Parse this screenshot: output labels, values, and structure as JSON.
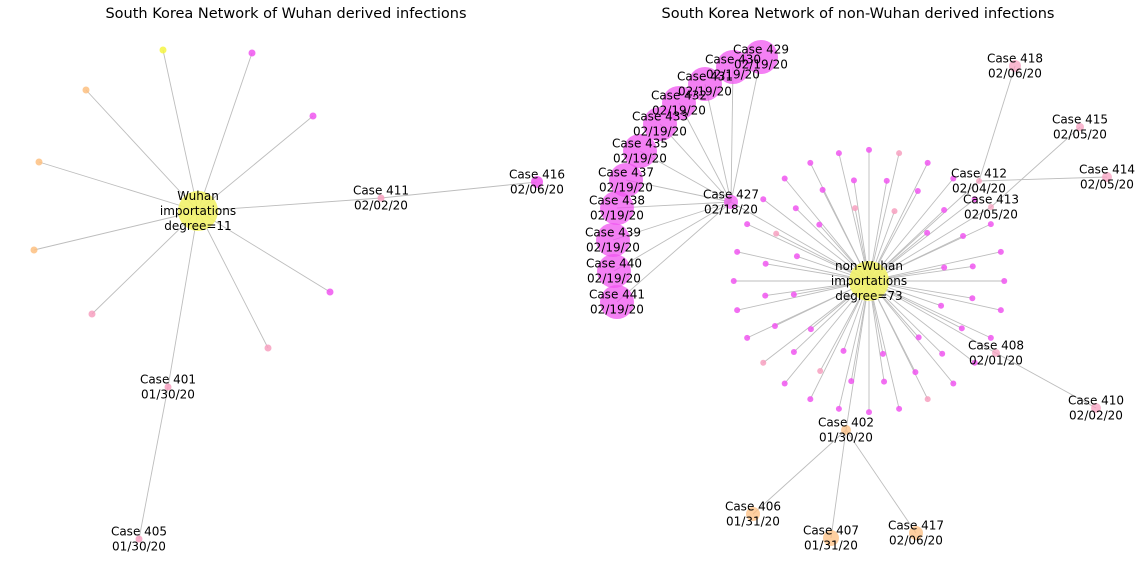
{
  "panels": [
    {
      "title": "South Korea Network of Wuhan derived infections",
      "hub_label": [
        "Wuhan",
        "importations",
        "degree=11"
      ],
      "nodes": [
        {
          "id": "yellow-top",
          "color": "#f5f542",
          "hub_edge": true
        },
        {
          "id": "magenta-1",
          "color": "#f056f0",
          "hub_edge": true
        },
        {
          "id": "magenta-2",
          "color": "#f056f0",
          "hub_edge": true
        },
        {
          "id": "orange-1",
          "color": "#fdbf80",
          "hub_edge": true
        },
        {
          "id": "orange-2",
          "color": "#fdbf80",
          "hub_edge": true
        },
        {
          "id": "orange-3",
          "color": "#fdbf80",
          "hub_edge": true
        },
        {
          "id": "pink-1",
          "color": "#f7a0c0",
          "hub_edge": true
        },
        {
          "id": "pink-2",
          "color": "#f7a0c0",
          "hub_edge": true
        },
        {
          "id": "magenta-3",
          "color": "#f056f0",
          "hub_edge": true
        },
        {
          "id": "case411",
          "label": "Case 411",
          "date": "02/02/20",
          "color": "#f7a0c0",
          "hub_edge": true
        },
        {
          "id": "case416",
          "label": "Case 416",
          "date": "02/06/20",
          "color": "#f056f0"
        },
        {
          "id": "case401",
          "label": "Case 401",
          "date": "01/30/20",
          "color": "#f7a0c0",
          "hub_edge": true
        },
        {
          "id": "case405",
          "label": "Case 405",
          "date": "01/30/20",
          "color": "#f7a0c0"
        }
      ],
      "edges": [
        [
          "case411",
          "case416"
        ],
        [
          "case401",
          "case405"
        ]
      ]
    },
    {
      "title": "South Korea Network of non-Wuhan derived infections",
      "hub_label": [
        "non-Wuhan",
        "importations",
        "degree=73"
      ],
      "labeled_nodes": [
        {
          "id": "case427",
          "label": "Case 427",
          "date": "02/18/20"
        },
        {
          "id": "case429",
          "label": "Case 429",
          "date": "02/19/20"
        },
        {
          "id": "case430",
          "label": "Case 430",
          "date": "02/19/20"
        },
        {
          "id": "case431",
          "label": "Case 431",
          "date": "02/19/20"
        },
        {
          "id": "case432",
          "label": "Case 432",
          "date": "02/19/20"
        },
        {
          "id": "case433",
          "label": "Case 433",
          "date": "02/19/20"
        },
        {
          "id": "case435",
          "label": "Case 435",
          "date": "02/19/20"
        },
        {
          "id": "case437",
          "label": "Case 437",
          "date": "02/19/20"
        },
        {
          "id": "case438",
          "label": "Case 438",
          "date": "02/19/20"
        },
        {
          "id": "case439",
          "label": "Case 439",
          "date": "02/19/20"
        },
        {
          "id": "case440",
          "label": "Case 440",
          "date": "02/19/20"
        },
        {
          "id": "case441",
          "label": "Case 441",
          "date": "02/19/20"
        },
        {
          "id": "case418",
          "label": "Case 418",
          "date": "02/06/20"
        },
        {
          "id": "case415",
          "label": "Case 415",
          "date": "02/05/20"
        },
        {
          "id": "case414",
          "label": "Case 414",
          "date": "02/05/20"
        },
        {
          "id": "case412",
          "label": "Case 412",
          "date": "02/04/20"
        },
        {
          "id": "case413",
          "label": "Case 413",
          "date": "02/05/20"
        },
        {
          "id": "case408",
          "label": "Case 408",
          "date": "02/01/20"
        },
        {
          "id": "case410",
          "label": "Case 410",
          "date": "02/02/20"
        },
        {
          "id": "case402",
          "label": "Case 402",
          "date": "01/30/20"
        },
        {
          "id": "case406",
          "label": "Case 406",
          "date": "01/31/20"
        },
        {
          "id": "case407",
          "label": "Case 407",
          "date": "01/31/20"
        },
        {
          "id": "case417",
          "label": "Case 417",
          "date": "02/06/20"
        }
      ],
      "edges": [
        [
          "hub",
          "case427"
        ],
        [
          "case427",
          "case429"
        ],
        [
          "case427",
          "case430"
        ],
        [
          "case427",
          "case431"
        ],
        [
          "case427",
          "case432"
        ],
        [
          "case427",
          "case433"
        ],
        [
          "case427",
          "case435"
        ],
        [
          "case427",
          "case437"
        ],
        [
          "case427",
          "case438"
        ],
        [
          "case427",
          "case439"
        ],
        [
          "case427",
          "case440"
        ],
        [
          "case427",
          "case441"
        ],
        [
          "case412",
          "case418"
        ],
        [
          "case413",
          "case415"
        ],
        [
          "case412",
          "case414"
        ],
        [
          "hub",
          "case412"
        ],
        [
          "hub",
          "case413"
        ],
        [
          "hub",
          "case408"
        ],
        [
          "case408",
          "case410"
        ],
        [
          "hub",
          "case402"
        ],
        [
          "case402",
          "case406"
        ],
        [
          "case402",
          "case407"
        ],
        [
          "case402",
          "case417"
        ]
      ],
      "ring_node_count": 60
    }
  ],
  "colors": {
    "hub": "#f2f26a",
    "magenta": "#f056f0",
    "orange": "#fdbf80",
    "pink": "#f7a0c0",
    "edge": "#bdbdbd"
  }
}
